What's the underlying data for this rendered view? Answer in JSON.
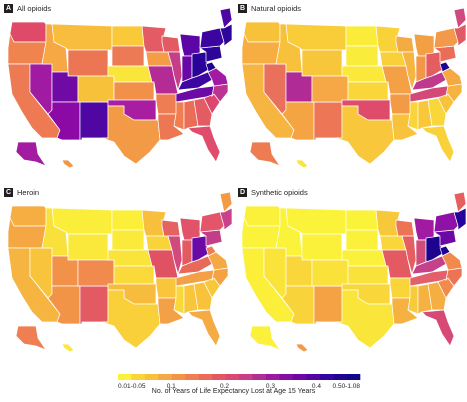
{
  "panels": [
    {
      "letter": "A",
      "title": "All opioids",
      "states": {
        "WA": "#e04a69",
        "OR": "#f0844f",
        "CA": "#ee7a54",
        "NV": "#a11aa2",
        "ID": "#f5a844",
        "MT": "#f8bd3c",
        "WY": "#ec7653",
        "UT": "#6f0aa4",
        "AZ": "#8b0aa5",
        "NM": "#4f06a3",
        "CO": "#f8c13a",
        "ND": "#f9c93a",
        "SD": "#ec7a55",
        "NE": "#fae63a",
        "KS": "#f2904a",
        "OK": "#a91ea0",
        "TX": "#f39a47",
        "MN": "#e45c63",
        "IA": "#f49d46",
        "MO": "#b52b95",
        "AR": "#ee7d53",
        "LA": "#ed7753",
        "WI": "#e45a63",
        "IL": "#c73e88",
        "MI": "#5c07a5",
        "IN": "#6908a5",
        "OH": "#2a0498",
        "KY": "#3c06a0",
        "TN": "#6c0aa5",
        "MS": "#f07f50",
        "AL": "#e96d57",
        "GA": "#e35b63",
        "FL": "#df4c6c",
        "SC": "#dd476f",
        "NC": "#bc3490",
        "VA": "#a21aa1",
        "WV": "#1c048e",
        "PA": "#2c0599",
        "NY": "#3b05a0",
        "ME": "#4e06a3",
        "NE_CLUSTER": "#2d0599",
        "AK": "#a21ba1",
        "HI": "#f39746"
      }
    },
    {
      "letter": "B",
      "title": "Natural opioids",
      "states": {
        "WA": "#f8c13a",
        "OR": "#f6ad42",
        "CA": "#f6b440",
        "NV": "#e9705a",
        "ID": "#f8c13b",
        "MT": "#f9cc3a",
        "WY": "#f8c63b",
        "UT": "#b02b95",
        "AZ": "#f5a444",
        "NM": "#ec7655",
        "CO": "#f5a845",
        "ND": "#fbec3a",
        "SD": "#faec3a",
        "NE": "#fae93a",
        "KS": "#f9d73a",
        "OK": "#df4b6a",
        "TX": "#f8c73b",
        "MN": "#f9d23a",
        "IA": "#f9cf3a",
        "MO": "#f4a045",
        "AR": "#f39a47",
        "LA": "#f8c33b",
        "WI": "#f5ab43",
        "IL": "#f6b440",
        "MI": "#f3a045",
        "IN": "#f29747",
        "OH": "#e45d61",
        "KY": "#bf3a8c",
        "TN": "#d34a78",
        "MS": "#f9d43a",
        "AL": "#f8c73a",
        "GA": "#f9d63a",
        "FL": "#f9d13a",
        "SC": "#f8c23b",
        "NC": "#f6b340",
        "VA": "#f5a943",
        "WV": "#1d048e",
        "PA": "#ea6d57",
        "NY": "#f2994a",
        "ME": "#cf4a7d",
        "NE_CLUSTER": "#e05a66",
        "AK": "#ee7c53",
        "HI": "#fae63a"
      }
    },
    {
      "letter": "C",
      "title": "Heroin",
      "states": {
        "WA": "#f6ad42",
        "OR": "#f5a744",
        "CA": "#f6b440",
        "NV": "#f8c43b",
        "ID": "#f9e03a",
        "MT": "#fbee3a",
        "WY": "#fae83a",
        "UT": "#f29249",
        "AZ": "#f29448",
        "NM": "#e35a63",
        "CO": "#f08a4d",
        "ND": "#fbef3a",
        "SD": "#faea3a",
        "NE": "#fae43a",
        "KS": "#f9da3a",
        "OK": "#f7bb3d",
        "TX": "#f9d03a",
        "MN": "#f7bf3b",
        "IA": "#f9d33a",
        "MO": "#e05164",
        "AR": "#f8c53b",
        "LA": "#f3a046",
        "WI": "#e4625f",
        "IL": "#d04a7d",
        "MI": "#e05368",
        "IN": "#e35a63",
        "OH": "#6a09a5",
        "KY": "#e86959",
        "TN": "#f3a046",
        "MS": "#f9d93a",
        "AL": "#f8c53b",
        "GA": "#f8c33b",
        "FL": "#f5aa43",
        "SC": "#f8c83b",
        "NC": "#f4a244",
        "VA": "#f5a944",
        "WV": "#ee7c53",
        "PA": "#c23f88",
        "NY": "#e3566a",
        "ME": "#f39a47",
        "NE_CLUSTER": "#c8418a",
        "AK": "#ef7f52",
        "HI": "#fae83a"
      }
    },
    {
      "letter": "D",
      "title": "Synthetic opioids",
      "states": {
        "WA": "#fbf03a",
        "OR": "#fbf23a",
        "CA": "#fbef3a",
        "NV": "#fae43a",
        "ID": "#fbf23a",
        "MT": "#fbf23a",
        "WY": "#fbf03a",
        "UT": "#f9d63a",
        "AZ": "#f9d33a",
        "NM": "#f4a244",
        "CO": "#fae23a",
        "ND": "#fbf23a",
        "SD": "#fbf03a",
        "NE": "#fbf03a",
        "KS": "#fae23a",
        "OK": "#f9d63a",
        "TX": "#fae53a",
        "MN": "#f8c83b",
        "IA": "#f9d73a",
        "MO": "#e35a63",
        "AR": "#f9d53a",
        "LA": "#f6b240",
        "WI": "#ec7455",
        "IL": "#e55f60",
        "MI": "#a21aa1",
        "IN": "#d04c7b",
        "OH": "#1d048e",
        "KY": "#c5428a",
        "TN": "#e3606a",
        "MS": "#f8cb3a",
        "AL": "#f6b240",
        "GA": "#f5ae42",
        "FL": "#d84a76",
        "SC": "#f08a4d",
        "NC": "#ec7455",
        "VA": "#f08a4d",
        "WV": "#1a048d",
        "PA": "#6c09a5",
        "NY": "#8e12a5",
        "ME": "#e55f60",
        "NE_CLUSTER": "#24049a",
        "AK": "#fbf03a",
        "HI": "#f39a47"
      }
    }
  ],
  "legend": {
    "title": "No. of Years of Life Expectancy Lost at Age 15 Years",
    "ticks": [
      "0.01-0.05",
      "0.1",
      "0.2",
      "0.3",
      "0.4",
      "0.50-1.08"
    ],
    "colors": [
      "#fbf03a",
      "#f9d43a",
      "#f8c13b",
      "#f5a944",
      "#f39347",
      "#ef7f52",
      "#ea6c58",
      "#e35763",
      "#d84a73",
      "#c83f85",
      "#b12e95",
      "#9b1aa0",
      "#850ea4",
      "#6e08a5",
      "#5406a3",
      "#3505a0",
      "#1e048f",
      "#0d0887"
    ]
  }
}
